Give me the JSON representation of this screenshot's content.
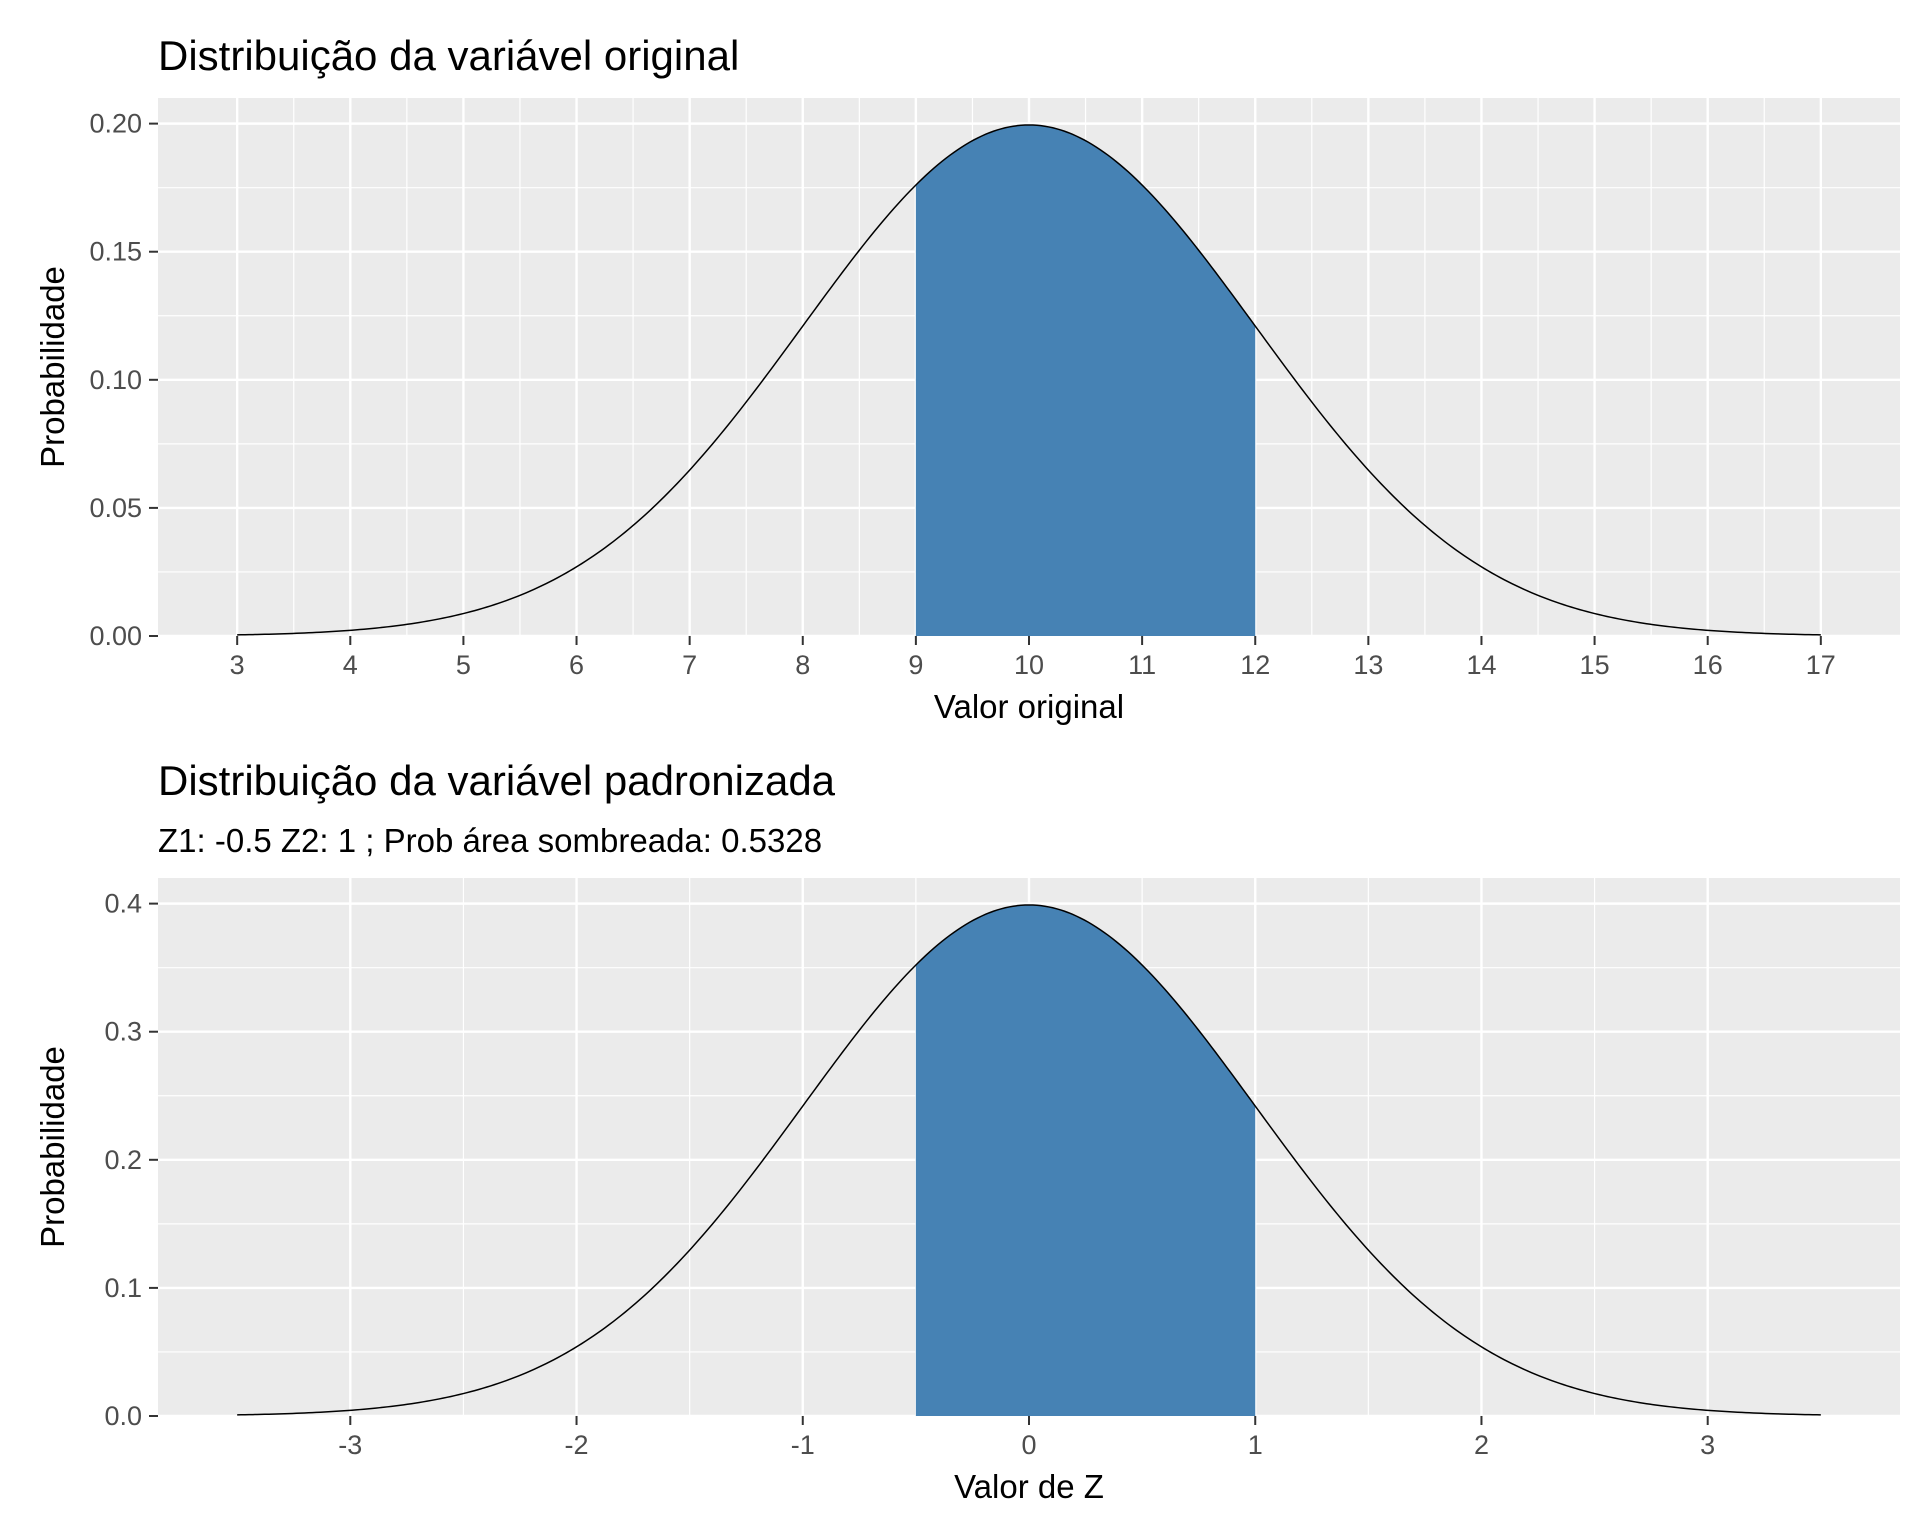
{
  "chart_data": [
    {
      "type": "area",
      "title": "Distribuição da variável original",
      "subtitle": "",
      "xlabel": "Valor original",
      "ylabel": "Probabilidade",
      "distribution": {
        "mean": 10,
        "sd": 2
      },
      "x_range": [
        3,
        17
      ],
      "xlim": [
        2.3,
        17.7
      ],
      "ylim": [
        0,
        0.21
      ],
      "x_ticks": [
        3,
        4,
        5,
        6,
        7,
        8,
        9,
        10,
        11,
        12,
        13,
        14,
        15,
        16,
        17
      ],
      "x_tick_labels": [
        "3",
        "4",
        "5",
        "6",
        "7",
        "8",
        "9",
        "10",
        "11",
        "12",
        "13",
        "14",
        "15",
        "16",
        "17"
      ],
      "y_ticks": [
        0,
        0.05,
        0.1,
        0.15,
        0.2
      ],
      "y_tick_labels": [
        "0.00",
        "0.05",
        "0.10",
        "0.15",
        "0.20"
      ],
      "shaded_range": [
        9,
        12
      ],
      "series": [
        {
          "x": [
            3,
            3.5,
            4,
            4.5,
            5,
            5.5,
            6,
            6.5,
            7,
            7.5,
            8,
            8.5,
            9,
            9.5,
            10,
            10.5,
            11,
            11.5,
            12,
            12.5,
            13,
            13.5,
            14,
            14.5,
            15,
            15.5,
            16,
            16.5,
            17
          ],
          "values": [
            0.0004,
            0.0011,
            0.0022,
            0.0045,
            0.0088,
            0.0158,
            0.027,
            0.0431,
            0.0648,
            0.0913,
            0.121,
            0.1506,
            0.176,
            0.1933,
            0.1995,
            0.1933,
            0.176,
            0.1506,
            0.121,
            0.0913,
            0.0648,
            0.0431,
            0.027,
            0.0158,
            0.0088,
            0.0045,
            0.0022,
            0.0011,
            0.0004
          ]
        }
      ],
      "grid": true,
      "colors": {
        "fill": "#4682B4",
        "line": "#000000",
        "panel": "#EBEBEB",
        "grid": "#FFFFFF"
      }
    },
    {
      "type": "area",
      "title": "Distribuição da variável padronizada",
      "subtitle": "Z1: -0.5   Z2: 1 ; Prob área sombreada: 0.5328",
      "xlabel": "Valor de Z",
      "ylabel": "Probabilidade",
      "distribution": {
        "mean": 0,
        "sd": 1
      },
      "x_range": [
        -3.5,
        3.5
      ],
      "xlim": [
        -3.85,
        3.85
      ],
      "ylim": [
        0,
        0.42
      ],
      "x_ticks": [
        -3,
        -2,
        -1,
        0,
        1,
        2,
        3
      ],
      "x_tick_labels": [
        "-3",
        "-2",
        "-1",
        "0",
        "1",
        "2",
        "3"
      ],
      "y_ticks": [
        0,
        0.1,
        0.2,
        0.3,
        0.4
      ],
      "y_tick_labels": [
        "0.0",
        "0.1",
        "0.2",
        "0.3",
        "0.4"
      ],
      "shaded_range": [
        -0.5,
        1
      ],
      "series": [
        {
          "x": [
            -3.5,
            -3,
            -2.5,
            -2,
            -1.5,
            -1,
            -0.5,
            0,
            0.5,
            1,
            1.5,
            2,
            2.5,
            3,
            3.5
          ],
          "values": [
            0.0009,
            0.0044,
            0.0175,
            0.054,
            0.1295,
            0.242,
            0.3521,
            0.3989,
            0.3521,
            0.242,
            0.1295,
            0.054,
            0.0175,
            0.0044,
            0.0009
          ]
        }
      ],
      "grid": true,
      "colors": {
        "fill": "#4682B4",
        "line": "#000000",
        "panel": "#EBEBEB",
        "grid": "#FFFFFF"
      }
    }
  ]
}
